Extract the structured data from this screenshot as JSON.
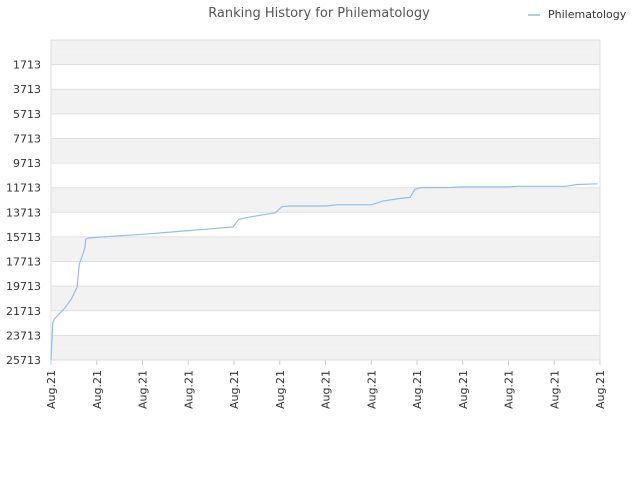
{
  "chart_data": {
    "type": "line",
    "title": "Ranking History for Philematology",
    "xlabel": "",
    "ylabel": "",
    "ylim": [
      25713,
      -287
    ],
    "y_inverted": true,
    "y_ticks": [
      "1713",
      "3713",
      "5713",
      "7713",
      "9713",
      "11713",
      "13713",
      "15713",
      "17713",
      "19713",
      "21713",
      "23713",
      "25713"
    ],
    "x_ticks": [
      "Aug.21",
      "Aug.21",
      "Aug.21",
      "Aug.21",
      "Aug.21",
      "Aug.21",
      "Aug.21",
      "Aug.21",
      "Aug.21",
      "Aug.21",
      "Aug.21",
      "Aug.21",
      "Aug.21"
    ],
    "x_range": [
      0,
      12
    ],
    "grid": true,
    "legend_position": "top-right",
    "colors": {
      "line": "#90c0f0",
      "band_dark": "#f2f2f2",
      "band_light": "#ffffff",
      "grid": "#e0e0e0"
    },
    "series": [
      {
        "name": "Philematology",
        "x": [
          0.0,
          0.04,
          0.07,
          0.3,
          0.44,
          0.57,
          0.6,
          0.62,
          0.68,
          0.74,
          0.76,
          0.82,
          1.0,
          1.5,
          2.0,
          2.5,
          3.0,
          3.5,
          3.98,
          4.1,
          4.2,
          4.5,
          4.9,
          5.05,
          5.2,
          5.5,
          6.0,
          6.25,
          6.4,
          7.0,
          7.25,
          7.6,
          7.85,
          7.95,
          8.1,
          8.5,
          8.7,
          9.0,
          9.5,
          9.95,
          10.2,
          10.5,
          11.0,
          11.25,
          11.5,
          11.95
        ],
        "y": [
          25713,
          22700,
          22400,
          21500,
          20800,
          19800,
          18600,
          17900,
          17300,
          16600,
          15900,
          15800,
          15750,
          15620,
          15500,
          15350,
          15200,
          15050,
          14900,
          14300,
          14200,
          14000,
          13750,
          13250,
          13200,
          13200,
          13200,
          13100,
          13100,
          13100,
          12800,
          12600,
          12500,
          11850,
          11700,
          11700,
          11700,
          11650,
          11650,
          11650,
          11600,
          11600,
          11600,
          11600,
          11450,
          11400
        ]
      }
    ]
  }
}
